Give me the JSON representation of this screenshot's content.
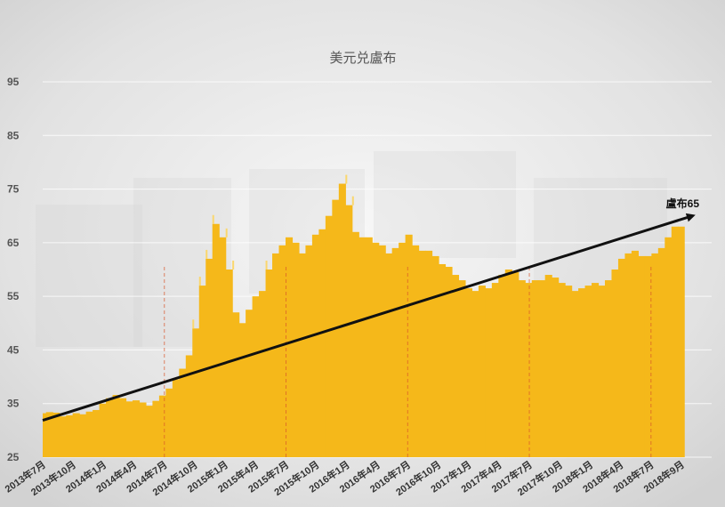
{
  "chart_data": {
    "type": "area",
    "title": "美元兑盧布",
    "xlabel": "",
    "ylabel": "",
    "ylim": [
      25,
      95
    ],
    "yticks": [
      25,
      35,
      45,
      55,
      65,
      75,
      85,
      95
    ],
    "grid": true,
    "colors": {
      "fill": "#F5B81A",
      "fill_light": "#FAD76E",
      "trend": "#111111",
      "vline": "#D9562B"
    },
    "x_tick_labels": [
      "2013年7月",
      "2013年10月",
      "2014年1月",
      "2014年4月",
      "2014年7月",
      "2014年10月",
      "2015年1月",
      "2015年4月",
      "2015年7月",
      "2015年10月",
      "2016年1月",
      "2016年4月",
      "2016年7月",
      "2016年10月",
      "2017年1月",
      "2017年4月",
      "2017年7月",
      "2017年10月",
      "2018年1月",
      "2018年4月",
      "2018年7月",
      "2018年9月"
    ],
    "series": [
      {
        "values": [
          33.2,
          33.4,
          33.3,
          32.6,
          32.8,
          33.2,
          33.0,
          33.5,
          33.8,
          35.0,
          36.0,
          36.6,
          36.0,
          35.4,
          35.6,
          35.2,
          34.6,
          35.5,
          36.5,
          37.8,
          39.5,
          41.5,
          44.0,
          49.0,
          57.0,
          62.0,
          68.5,
          66.0,
          60.0,
          52.0,
          50.0,
          52.5,
          55.0,
          56.0,
          60.0,
          63.0,
          64.5,
          66.0,
          65.0,
          63.0,
          64.5,
          66.5,
          67.5,
          70.0,
          73.0,
          76.0,
          72.0,
          67.0,
          66.0,
          66.0,
          65.0,
          64.5,
          63.0,
          64.0,
          65.0,
          66.5,
          64.5,
          63.5,
          63.5,
          62.5,
          61.0,
          60.5,
          59.0,
          58.0,
          56.5,
          56.0,
          57.0,
          56.5,
          57.5,
          59.0,
          60.0,
          59.5,
          58.0,
          57.5,
          58.0,
          58.0,
          59.0,
          58.5,
          57.5,
          57.0,
          56.0,
          56.5,
          57.0,
          57.5,
          57.0,
          58.0,
          60.0,
          62.0,
          63.0,
          63.5,
          62.5,
          62.5,
          63.0,
          64.0,
          66.0,
          68.0,
          68.0
        ]
      }
    ],
    "trend": {
      "from": 33.2,
      "to": 68.0
    },
    "dashed_lines_at": [
      "2014年7月",
      "2015年7月",
      "2016年7月",
      "2017年7月",
      "2018年7月"
    ],
    "annotation": {
      "text": "盧布65",
      "value": 65
    }
  }
}
